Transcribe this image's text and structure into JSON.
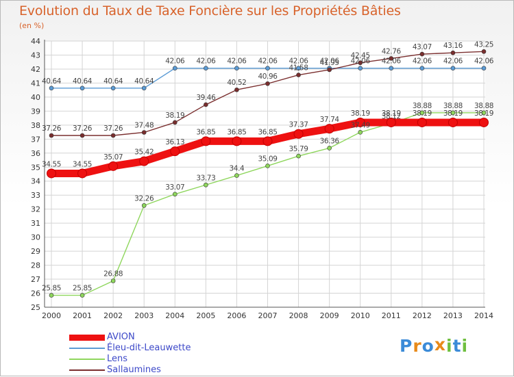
{
  "chart_data": {
    "type": "line",
    "title": "Evolution du Taux de Taxe Foncière sur les Propriétés Bâties",
    "ylabel": "(en %)",
    "xlabel": "",
    "ylim": [
      25,
      44
    ],
    "yticks": [
      25,
      26,
      27,
      28,
      29,
      30,
      31,
      32,
      33,
      34,
      35,
      36,
      37,
      38,
      39,
      40,
      41,
      42,
      43,
      44
    ],
    "grid": true,
    "legend_position": "bottom-left",
    "categories": [
      "2000",
      "2001",
      "2002",
      "2003",
      "2004",
      "2005",
      "2006",
      "2007",
      "2008",
      "2009",
      "2010",
      "2011",
      "2012",
      "2013",
      "2014"
    ],
    "series": [
      {
        "name": "Éleu-dit-Leauwette",
        "color": "#5b9bd5",
        "values": [
          40.64,
          40.64,
          40.64,
          40.64,
          42.06,
          42.06,
          42.06,
          42.06,
          42.06,
          42.06,
          42.06,
          42.06,
          42.06,
          42.06,
          42.06
        ],
        "labels": [
          "40.64",
          "40.64",
          "40.64",
          "40.64",
          "42.06",
          "42.06",
          "42.06",
          "42.06",
          "42.06",
          "42.06",
          "42.06",
          "42.06",
          "42.06",
          "42.06",
          "42.06"
        ]
      },
      {
        "name": "Sallaumines",
        "color": "#7a2e2e",
        "values": [
          37.26,
          37.26,
          37.26,
          37.48,
          38.19,
          39.46,
          40.52,
          40.96,
          41.58,
          41.95,
          42.45,
          42.76,
          43.07,
          43.16,
          43.25
        ],
        "labels": [
          "37.26",
          "37.26",
          "37.26",
          "37.48",
          "38.19",
          "39.46",
          "40.52",
          "40.96",
          "41.58",
          "41.95",
          "42.45",
          "42.76",
          "43.07",
          "43.16",
          "43.25"
        ]
      },
      {
        "name": "Lens",
        "color": "#8ed65c",
        "values": [
          25.85,
          25.85,
          26.88,
          32.26,
          33.07,
          33.73,
          34.4,
          35.09,
          35.79,
          36.36,
          37.49,
          38.12,
          38.88,
          38.88,
          38.88
        ],
        "labels": [
          "25.85",
          "25.85",
          "26.88",
          "32.26",
          "33.07",
          "33.73",
          "34.4",
          "35.09",
          "35.79",
          "36.36",
          "37.49",
          "38.12",
          "38.88",
          "38.88",
          "38.88"
        ]
      },
      {
        "name": "AVION",
        "color": "#ee1111",
        "values": [
          34.55,
          34.55,
          35.07,
          35.42,
          36.13,
          36.85,
          36.85,
          36.85,
          37.37,
          37.74,
          38.19,
          38.19,
          38.19,
          38.19,
          38.19
        ],
        "labels": [
          "34.55",
          "34.55",
          "35.07",
          "35.42",
          "36.13",
          "36.85",
          "36.85",
          "36.85",
          "37.37",
          "37.74",
          "38.19",
          "38.19",
          "38.19",
          "38.19",
          "38.19"
        ]
      }
    ],
    "legend_order": [
      "AVION",
      "Éleu-dit-Leauwette",
      "Lens",
      "Sallaumines"
    ]
  },
  "legend": {
    "items": [
      {
        "name": "AVION",
        "color": "#ee1111",
        "thick": true
      },
      {
        "name": "Éleu-dit-Leauwette",
        "color": "#5b9bd5",
        "thick": false
      },
      {
        "name": "Lens",
        "color": "#8ed65c",
        "thick": false
      },
      {
        "name": "Sallaumines",
        "color": "#7a2e2e",
        "thick": false
      }
    ]
  },
  "logo": {
    "letters": [
      "P",
      "r",
      "o",
      "x",
      "i",
      "t",
      "i"
    ],
    "colors": [
      "#3b8bd8",
      "#e88a1a",
      "#3b8bd8",
      "#e88a1a",
      "#6fbf3f",
      "#3b8bd8",
      "#6fbf3f"
    ]
  }
}
